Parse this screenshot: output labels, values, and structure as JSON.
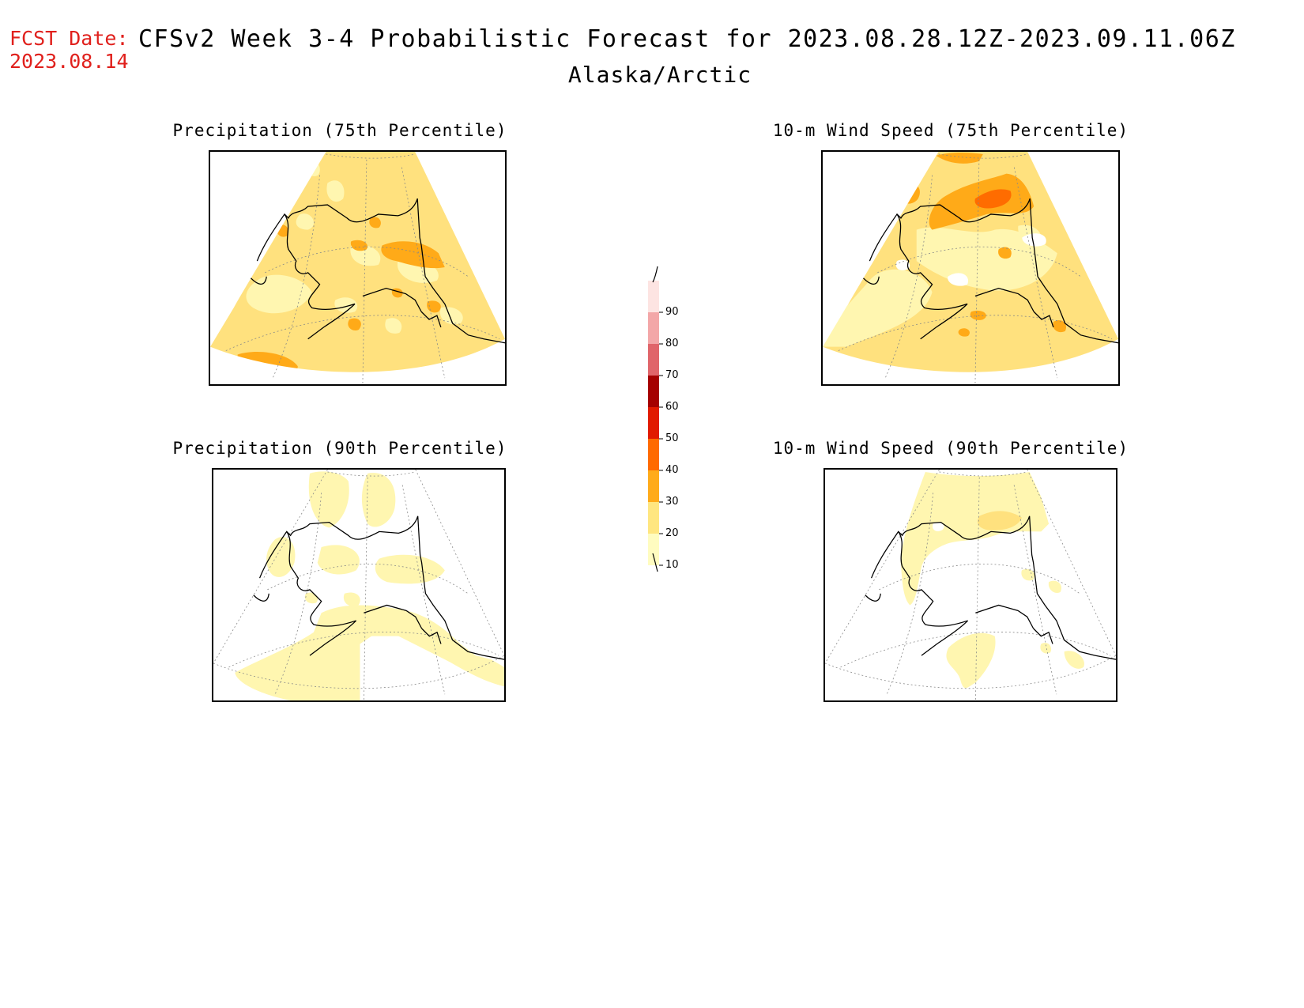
{
  "header": {
    "fcst_label": "FCST Date:",
    "fcst_date": "2023.08.14",
    "title": "CFSv2 Week 3-4 Probabilistic Forecast for 2023.08.28.12Z-2023.09.11.06Z",
    "region": "Alaska/Arctic"
  },
  "panels": [
    {
      "title": "Precipitation (75th Percentile)"
    },
    {
      "title": "10-m Wind Speed (75th Percentile)"
    },
    {
      "title": "Precipitation (90th Percentile)"
    },
    {
      "title": "10-m Wind Speed (90th Percentile)"
    }
  ],
  "colorbar": {
    "levels": [
      "10",
      "20",
      "30",
      "40",
      "50",
      "60",
      "70",
      "80",
      "90"
    ],
    "colors": [
      "#fffcc0",
      "#ffe680",
      "#ffab1a",
      "#ff6a00",
      "#e11a00",
      "#a50000",
      "#e0656a",
      "#f3a7a8",
      "#fde4e2"
    ]
  },
  "map_colors": {
    "c10": "#fff6b0",
    "c20": "#ffe17e",
    "c30": "#ffaa18",
    "c40": "#ff6c00",
    "coast": "#000000",
    "grid": "#888888"
  }
}
